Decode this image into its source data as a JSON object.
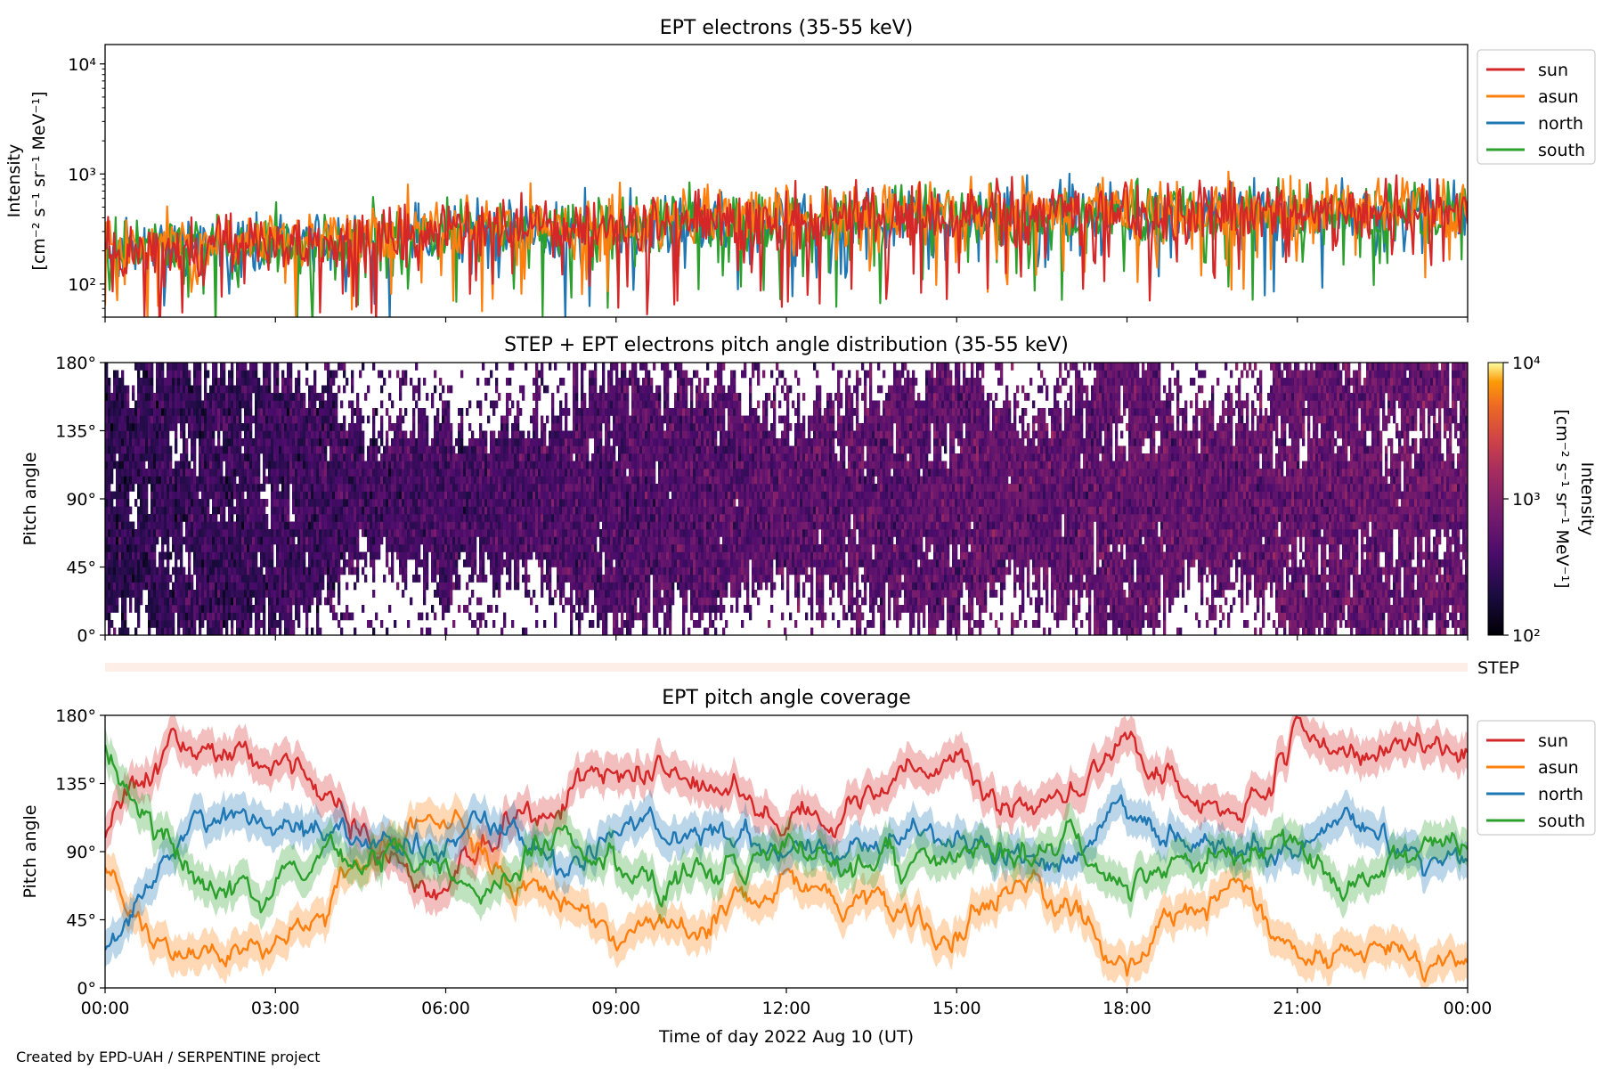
{
  "footer": "Created by EPD-UAH / SERPENTINE project",
  "colors": {
    "sun": "#d62728",
    "asun": "#ff7f0e",
    "north": "#1f77b4",
    "south": "#2ca02c"
  },
  "chart_data": [
    {
      "type": "line",
      "title": "EPT electrons (35-55 keV)",
      "ylabel_line1": "Intensity",
      "ylabel_line2": "[cm⁻² s⁻¹ sr⁻¹ MeV⁻¹]",
      "yscale": "log",
      "ylim": [
        50,
        15000
      ],
      "yticks": [
        "10²",
        "10³",
        "10⁴"
      ],
      "ytick_values": [
        100,
        1000,
        10000
      ],
      "xlim": [
        "00:00",
        "24:00"
      ],
      "legend_position": "outside right, top",
      "legend": [
        "sun",
        "asun",
        "north",
        "south"
      ],
      "series": [
        {
          "name": "sun",
          "x_hours": [
            0,
            3,
            6,
            9,
            12,
            15,
            18,
            21,
            24
          ],
          "values": [
            200,
            230,
            300,
            330,
            380,
            420,
            440,
            460,
            450
          ]
        },
        {
          "name": "asun",
          "x_hours": [
            0,
            3,
            6,
            9,
            12,
            15,
            18,
            21,
            24
          ],
          "values": [
            220,
            250,
            320,
            360,
            420,
            450,
            470,
            480,
            480
          ]
        },
        {
          "name": "north",
          "x_hours": [
            0,
            3,
            6,
            9,
            12,
            15,
            18,
            21,
            24
          ],
          "values": [
            200,
            230,
            290,
            320,
            370,
            410,
            430,
            440,
            440
          ]
        },
        {
          "name": "south",
          "x_hours": [
            0,
            3,
            6,
            9,
            12,
            15,
            18,
            21,
            24
          ],
          "values": [
            210,
            240,
            300,
            330,
            380,
            420,
            430,
            440,
            430
          ]
        }
      ]
    },
    {
      "type": "heatmap",
      "title": "STEP + EPT electrons pitch angle distribution (35-55 keV)",
      "ylabel": "Pitch angle",
      "yticks": [
        "0°",
        "45°",
        "90°",
        "135°",
        "180°"
      ],
      "ytick_values": [
        0,
        45,
        90,
        135,
        180
      ],
      "ylim": [
        0,
        180
      ],
      "colorbar": {
        "label_line1": "Intensity",
        "label_line2": "[cm⁻² s⁻¹ sr⁻¹ MeV⁻¹]",
        "scale": "log",
        "range": [
          100,
          10000
        ],
        "ticks": [
          "10²",
          "10³",
          "10⁴"
        ],
        "colormap": "inferno"
      },
      "intensity_trend": {
        "x_hours": [
          0,
          6,
          12,
          18,
          24
        ],
        "values": [
          220,
          300,
          380,
          430,
          450
        ]
      }
    },
    {
      "type": "bar",
      "label": "STEP",
      "color": "#fdeee8"
    },
    {
      "type": "line",
      "title": "EPT pitch angle coverage",
      "ylabel": "Pitch angle",
      "xlabel": "Time of day 2022 Aug 10 (UT)",
      "yticks": [
        "0°",
        "45°",
        "90°",
        "135°",
        "180°"
      ],
      "ytick_values": [
        0,
        45,
        90,
        135,
        180
      ],
      "ylim": [
        0,
        180
      ],
      "xticks": [
        "00:00",
        "03:00",
        "06:00",
        "09:00",
        "12:00",
        "15:00",
        "18:00",
        "21:00",
        "00:00"
      ],
      "legend_position": "outside right, top",
      "legend": [
        "sun",
        "asun",
        "north",
        "south"
      ],
      "series": [
        {
          "name": "sun",
          "x_hours": [
            0,
            1,
            2,
            3,
            4,
            5,
            6,
            7,
            8,
            9,
            10,
            11,
            12,
            13,
            14,
            15,
            16,
            17,
            18,
            19,
            20,
            21,
            22,
            23,
            24
          ],
          "values": [
            100,
            160,
            155,
            150,
            120,
            80,
            60,
            110,
            120,
            150,
            140,
            130,
            110,
            120,
            140,
            150,
            110,
            130,
            170,
            120,
            115,
            160,
            155,
            160,
            160
          ]
        },
        {
          "name": "asun",
          "x_hours": [
            0,
            1,
            2,
            3,
            4,
            5,
            6,
            7,
            8,
            9,
            10,
            11,
            12,
            13,
            14,
            15,
            16,
            17,
            18,
            19,
            20,
            21,
            22,
            23,
            24
          ],
          "values": [
            80,
            20,
            25,
            30,
            60,
            100,
            120,
            70,
            60,
            30,
            40,
            50,
            70,
            60,
            40,
            30,
            70,
            50,
            10,
            60,
            65,
            20,
            25,
            25,
            20
          ]
        },
        {
          "name": "north",
          "x_hours": [
            0,
            1,
            2,
            3,
            4,
            5,
            6,
            7,
            8,
            9,
            10,
            11,
            12,
            13,
            14,
            15,
            16,
            17,
            18,
            19,
            20,
            21,
            22,
            23,
            24
          ],
          "values": [
            25,
            80,
            120,
            110,
            100,
            90,
            100,
            110,
            80,
            100,
            110,
            100,
            90,
            95,
            100,
            95,
            90,
            85,
            110,
            95,
            90,
            90,
            110,
            90,
            90
          ]
        },
        {
          "name": "south",
          "x_hours": [
            0,
            1,
            2,
            3,
            4,
            5,
            6,
            7,
            8,
            9,
            10,
            11,
            12,
            13,
            14,
            15,
            16,
            17,
            18,
            19,
            20,
            21,
            22,
            23,
            24
          ],
          "values": [
            160,
            100,
            60,
            70,
            80,
            90,
            80,
            70,
            100,
            80,
            70,
            80,
            90,
            85,
            80,
            85,
            90,
            95,
            70,
            85,
            90,
            90,
            70,
            90,
            95
          ]
        }
      ]
    }
  ]
}
